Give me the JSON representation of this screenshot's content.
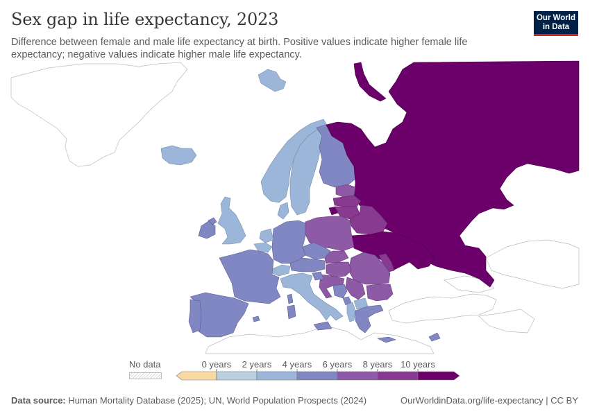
{
  "header": {
    "title": "Sex gap in life expectancy, 2023",
    "subtitle": "Difference between female and male life expectancy at birth. Positive values indicate higher female life expectancy; negative values indicate higher male life expectancy."
  },
  "logo": {
    "line1": "Our World",
    "line2": "in Data",
    "bg_color": "#002147",
    "accent_color": "#ce261e"
  },
  "legend": {
    "no_data_label": "No data",
    "bins": [
      {
        "label": "0 years",
        "color": "#f8d9a3"
      },
      {
        "label": "2 years",
        "color": "#bad0e0"
      },
      {
        "label": "4 years",
        "color": "#9bb6d8"
      },
      {
        "label": "6 years",
        "color": "#8187c2"
      },
      {
        "label": "8 years",
        "color": "#8e5aa5"
      },
      {
        "label": "10 years",
        "color": "#873a90"
      },
      {
        "label": "",
        "color": "#6b006a"
      }
    ]
  },
  "chart_data": {
    "type": "choropleth",
    "year": 2023,
    "unit": "years",
    "scale_ticks": [
      0,
      2,
      4,
      6,
      8,
      10
    ],
    "regions": [
      {
        "name": "Iceland",
        "value": 3.0
      },
      {
        "name": "Greenland",
        "value": null
      },
      {
        "name": "Svalbard",
        "value": 3.0
      },
      {
        "name": "Norway",
        "value": 3.3
      },
      {
        "name": "Sweden",
        "value": 3.3
      },
      {
        "name": "Finland",
        "value": 5.0
      },
      {
        "name": "Russia",
        "value": 11.5
      },
      {
        "name": "Estonia",
        "value": 8.0
      },
      {
        "name": "Latvia",
        "value": 9.5
      },
      {
        "name": "Lithuania",
        "value": 9.0
      },
      {
        "name": "Belarus",
        "value": 9.5
      },
      {
        "name": "Ukraine",
        "value": 10.5
      },
      {
        "name": "Poland",
        "value": 7.5
      },
      {
        "name": "United Kingdom",
        "value": 3.8
      },
      {
        "name": "Ireland",
        "value": 3.5
      },
      {
        "name": "Northern Ireland",
        "value": 5.0
      },
      {
        "name": "Denmark",
        "value": 3.5
      },
      {
        "name": "Netherlands",
        "value": 3.0
      },
      {
        "name": "Belgium",
        "value": 4.5
      },
      {
        "name": "Germany",
        "value": 4.6
      },
      {
        "name": "France",
        "value": 5.5
      },
      {
        "name": "Switzerland",
        "value": 3.5
      },
      {
        "name": "Austria",
        "value": 4.6
      },
      {
        "name": "Czechia",
        "value": 5.8
      },
      {
        "name": "Slovakia",
        "value": 7.0
      },
      {
        "name": "Hungary",
        "value": 6.5
      },
      {
        "name": "Romania",
        "value": 7.0
      },
      {
        "name": "Bulgaria",
        "value": 7.0
      },
      {
        "name": "Moldova",
        "value": 8.5
      },
      {
        "name": "Spain",
        "value": 5.3
      },
      {
        "name": "Portugal",
        "value": 5.7
      },
      {
        "name": "Italy",
        "value": 4.2
      },
      {
        "name": "Slovenia",
        "value": 5.5
      },
      {
        "name": "Croatia",
        "value": 6.0
      },
      {
        "name": "Bosnia and Herzegovina",
        "value": 5.0
      },
      {
        "name": "Serbia",
        "value": 5.5
      },
      {
        "name": "Montenegro",
        "value": 5.5
      },
      {
        "name": "Albania",
        "value": 3.5
      },
      {
        "name": "North Macedonia",
        "value": 4.0
      },
      {
        "name": "Greece",
        "value": 5.0
      },
      {
        "name": "Cyprus",
        "value": 4.5
      },
      {
        "name": "Turkey",
        "value": null
      },
      {
        "name": "Kazakhstan",
        "value": null
      }
    ]
  },
  "footer": {
    "source_label": "Data source:",
    "source_text": "Human Mortality Database (2025); UN, World Population Prospects (2024)",
    "link": "OurWorldinData.org/life-expectancy | CC BY"
  }
}
